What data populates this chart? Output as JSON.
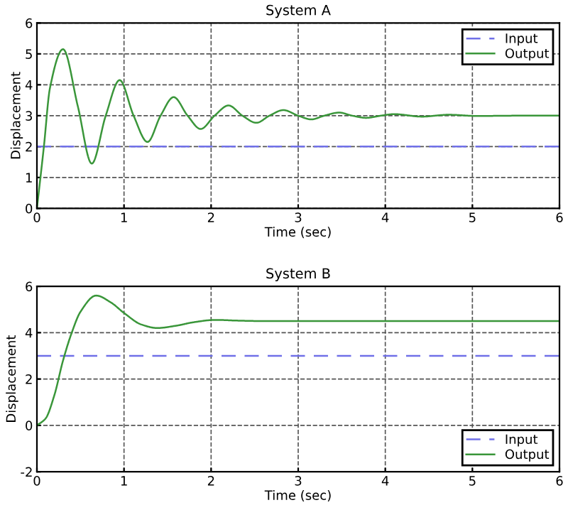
{
  "chart_data": [
    {
      "type": "line",
      "title": "System A",
      "xlabel": "Time (sec)",
      "ylabel": "Displacement",
      "xlim": [
        0,
        6
      ],
      "xticks": [
        0,
        1,
        2,
        3,
        4,
        5,
        6
      ],
      "ylim": [
        0,
        6
      ],
      "yticks": [
        0,
        1,
        2,
        3,
        4,
        5,
        6
      ],
      "grid": true,
      "legend": "top right",
      "series": [
        {
          "name": "Input",
          "color": "#7070e8",
          "line_style": "dashed",
          "x": [
            0,
            6
          ],
          "values": [
            2,
            2
          ]
        },
        {
          "name": "Output",
          "color": "#3a963a",
          "line_style": "solid",
          "x": [
            0,
            0.08,
            0.15,
            0.3,
            0.47,
            0.63,
            0.79,
            0.95,
            1.11,
            1.27,
            1.42,
            1.57,
            1.73,
            1.88,
            2.04,
            2.2,
            2.36,
            2.52,
            2.67,
            2.83,
            3.0,
            3.15,
            3.3,
            3.47,
            3.62,
            3.78,
            3.95,
            4.1,
            4.42,
            4.73,
            5.05,
            5.5,
            6
          ],
          "values": [
            0,
            2.0,
            3.9,
            5.15,
            3.3,
            1.45,
            3.0,
            4.15,
            3.0,
            2.15,
            3.0,
            3.6,
            3.0,
            2.57,
            3.0,
            3.33,
            3.0,
            2.77,
            3.0,
            3.18,
            3.0,
            2.88,
            3.0,
            3.1,
            3.0,
            2.93,
            3.0,
            3.05,
            2.97,
            3.03,
            2.99,
            3.0,
            3.0
          ]
        }
      ]
    },
    {
      "type": "line",
      "title": "System B",
      "xlabel": "Time (sec)",
      "ylabel": "Displacement",
      "xlim": [
        0,
        6
      ],
      "xticks": [
        0,
        1,
        2,
        3,
        4,
        5,
        6
      ],
      "ylim": [
        -2,
        6
      ],
      "yticks": [
        -2,
        0,
        2,
        4,
        6
      ],
      "grid": true,
      "legend": "bottom right",
      "series": [
        {
          "name": "Input",
          "color": "#7070e8",
          "line_style": "dashed",
          "x": [
            0,
            6
          ],
          "values": [
            3,
            3
          ]
        },
        {
          "name": "Output",
          "color": "#3a963a",
          "line_style": "solid",
          "x": [
            0,
            0.1,
            0.2,
            0.3,
            0.4,
            0.5,
            0.68,
            0.85,
            1.0,
            1.2,
            1.38,
            1.6,
            1.8,
            2.05,
            2.3,
            2.6,
            6
          ],
          "values": [
            0,
            0.3,
            1.3,
            2.8,
            4.0,
            4.9,
            5.6,
            5.3,
            4.85,
            4.35,
            4.2,
            4.3,
            4.45,
            4.55,
            4.52,
            4.5,
            4.5
          ]
        }
      ]
    }
  ]
}
